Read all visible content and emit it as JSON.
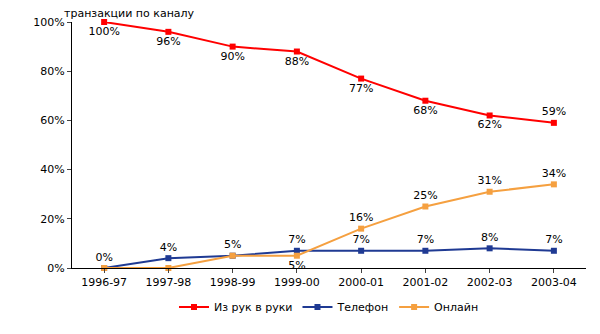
{
  "chart_data": {
    "type": "line",
    "y_label": "транзакции по каналу",
    "categories": [
      "1996-97",
      "1997-98",
      "1998-99",
      "1999-00",
      "2000-01",
      "2001-02",
      "2002-03",
      "2003-04"
    ],
    "series": [
      {
        "name": "Из рук в руки",
        "color": "#ff0000",
        "marker": "square",
        "values": [
          100,
          96,
          90,
          88,
          77,
          68,
          62,
          59
        ],
        "value_labels": [
          "100%",
          "96%",
          "90%",
          "88%",
          "77%",
          "68%",
          "62%",
          "59%"
        ]
      },
      {
        "name": "Телефон",
        "color": "#1f3a93",
        "marker": "square",
        "values": [
          0,
          4,
          5,
          7,
          7,
          7,
          8,
          7
        ],
        "value_labels": [
          "0%",
          "4%",
          null,
          "7%",
          "7%",
          "7%",
          "8%",
          "7%"
        ]
      },
      {
        "name": "Онлайн",
        "color": "#f5a040",
        "marker": "square",
        "values": [
          0,
          0,
          5,
          5,
          16,
          25,
          31,
          34
        ],
        "value_labels": [
          null,
          null,
          "5%",
          "5%",
          "16%",
          "25%",
          "31%",
          "34%"
        ]
      }
    ],
    "ylim": [
      0,
      100
    ],
    "yticks": [
      {
        "value": 0,
        "label": "0%"
      },
      {
        "value": 20,
        "label": "20%"
      },
      {
        "value": 40,
        "label": "40%"
      },
      {
        "value": 60,
        "label": "60%"
      },
      {
        "value": 80,
        "label": "80%"
      },
      {
        "value": 100,
        "label": "100%"
      }
    ],
    "grid": false,
    "legend": "bottom",
    "data_labels": true
  }
}
